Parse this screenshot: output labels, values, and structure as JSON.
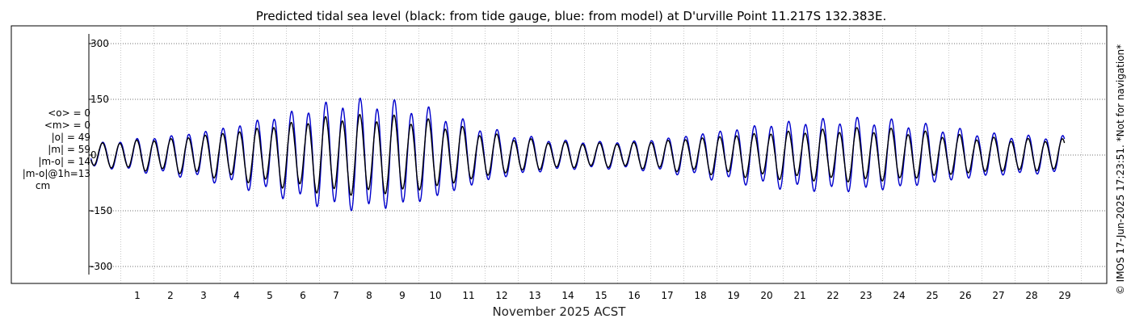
{
  "chart_data": {
    "type": "line",
    "title": "Predicted tidal sea level (black: from tide gauge, blue: from model) at D'urville Point 11.217S 132.383E.",
    "xlabel": "November 2025 ACST",
    "ylabel": "",
    "ylim": [
      -330,
      340
    ],
    "xlim": [
      -0.5,
      29.0
    ],
    "grid": true,
    "y_ticks": [
      300,
      150,
      0,
      -150,
      -300
    ],
    "y_tick_labels": [
      "300",
      "150",
      "0",
      "-150",
      "-300"
    ],
    "x_ticks": [
      1,
      2,
      3,
      4,
      5,
      6,
      7,
      8,
      9,
      10,
      11,
      12,
      13,
      14,
      15,
      16,
      17,
      18,
      19,
      20,
      21,
      22,
      23,
      24,
      25,
      26,
      27,
      28,
      29
    ],
    "x_tick_labels": [
      "1",
      "2",
      "3",
      "4",
      "5",
      "6",
      "7",
      "8",
      "9",
      "10",
      "11",
      "12",
      "13",
      "14",
      "15",
      "16",
      "17",
      "18",
      "19",
      "20",
      "21",
      "22",
      "23",
      "24",
      "25",
      "26",
      "27",
      "28",
      "29"
    ],
    "series": [
      {
        "name": "tide gauge",
        "color": "#000000",
        "description": "semi-diurnal tide, range about ±100 cm at springs",
        "peak_amplitudes_by_day": {
          "days": [
            0,
            1,
            2,
            3,
            4,
            5,
            6,
            7,
            8,
            9,
            10,
            11,
            12,
            13,
            14,
            15,
            16,
            17,
            18,
            19,
            20,
            21,
            22,
            23,
            24,
            25,
            26,
            27,
            28,
            29
          ],
          "amplitude": [
            30,
            38,
            42,
            52,
            62,
            75,
            88,
            100,
            100,
            96,
            85,
            65,
            48,
            38,
            32,
            30,
            32,
            38,
            45,
            52,
            58,
            62,
            66,
            68,
            64,
            56,
            48,
            42,
            40,
            40
          ]
        }
      },
      {
        "name": "model",
        "color": "#0000cc",
        "description": "semi-diurnal tide, range about ±140 cm at springs",
        "peak_amplitudes_by_day": {
          "days": [
            0,
            1,
            2,
            3,
            4,
            5,
            6,
            7,
            8,
            9,
            10,
            11,
            12,
            13,
            14,
            15,
            16,
            17,
            18,
            19,
            20,
            21,
            22,
            23,
            24,
            25,
            26,
            27,
            28,
            29
          ],
          "amplitude": [
            32,
            42,
            50,
            62,
            78,
            98,
            118,
            138,
            140,
            132,
            112,
            82,
            58,
            44,
            36,
            34,
            36,
            44,
            56,
            68,
            80,
            88,
            92,
            92,
            86,
            74,
            62,
            52,
            48,
            48
          ]
        }
      }
    ]
  },
  "stats": {
    "mean_obs": "<o> = 0",
    "mean_model": "<m> = 0",
    "abs_obs": "|o| = 49",
    "abs_model": "|m| = 59",
    "abs_diff": "|m-o| = 14",
    "abs_diff_lag": "|m-o|@1h=13",
    "unit": "cm"
  },
  "side_note": "© IMOS 17-Jun-2025 17:23:51. *Not for navigation*"
}
